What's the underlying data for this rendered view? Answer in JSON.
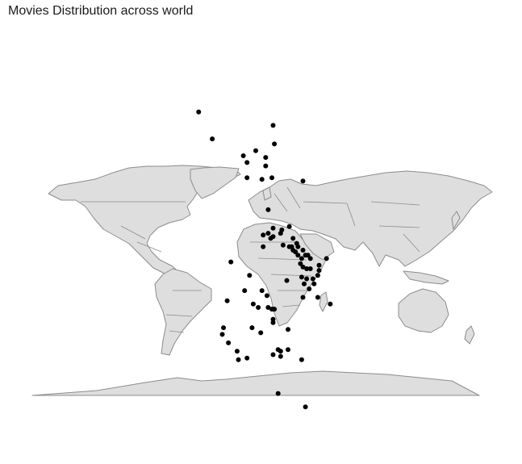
{
  "title": "Movies Distribution across world",
  "colors": {
    "land": "#dedede",
    "border": "#8c8c8c",
    "point": "#000000",
    "background": "#ffffff"
  },
  "chart_data": {
    "type": "scatter",
    "title": "Movies Distribution across world",
    "xlabel": "",
    "ylabel": "",
    "grid": false,
    "basemap": "world countries",
    "projection": "equirectangular",
    "lon_range": [
      -180,
      180
    ],
    "lat_range": [
      -90,
      90
    ],
    "points": [
      {
        "lon": -46,
        "lat": 82
      },
      {
        "lon": -35,
        "lat": 66
      },
      {
        "lon": -10,
        "lat": 56
      },
      {
        "lon": -7,
        "lat": 52
      },
      {
        "lon": -7,
        "lat": 43
      },
      {
        "lon": 0,
        "lat": 59
      },
      {
        "lon": 5,
        "lat": 42
      },
      {
        "lon": 8,
        "lat": 55
      },
      {
        "lon": 8,
        "lat": 50
      },
      {
        "lon": 14,
        "lat": 74
      },
      {
        "lon": 15,
        "lat": 63
      },
      {
        "lon": 13,
        "lat": 43
      },
      {
        "lon": 38,
        "lat": 41
      },
      {
        "lon": 10,
        "lat": 24
      },
      {
        "lon": 14,
        "lat": 13
      },
      {
        "lon": 10,
        "lat": 10
      },
      {
        "lon": 6,
        "lat": 9
      },
      {
        "lon": 6,
        "lat": 2
      },
      {
        "lon": 14,
        "lat": 8
      },
      {
        "lon": 20,
        "lat": 10
      },
      {
        "lon": 12,
        "lat": 7
      },
      {
        "lon": -20,
        "lat": -7
      },
      {
        "lon": -5,
        "lat": -15
      },
      {
        "lon": -9,
        "lat": -24
      },
      {
        "lon": -23,
        "lat": -30
      },
      {
        "lon": -2,
        "lat": -32
      },
      {
        "lon": 9,
        "lat": -27
      },
      {
        "lon": 14,
        "lat": -35
      },
      {
        "lon": 13,
        "lat": -35
      },
      {
        "lon": 15,
        "lat": -35
      },
      {
        "lon": 2,
        "lat": -34
      },
      {
        "lon": 5,
        "lat": -24
      },
      {
        "lon": 10,
        "lat": -34
      },
      {
        "lon": 14,
        "lat": -43
      },
      {
        "lon": 14,
        "lat": -41
      },
      {
        "lon": 25,
        "lat": -18
      },
      {
        "lon": 21,
        "lat": 12
      },
      {
        "lon": 22,
        "lat": 3
      },
      {
        "lon": 27,
        "lat": 14
      },
      {
        "lon": 27,
        "lat": 2
      },
      {
        "lon": 29,
        "lat": 2
      },
      {
        "lon": 30,
        "lat": 7
      },
      {
        "lon": 33,
        "lat": 4
      },
      {
        "lon": 34,
        "lat": 2
      },
      {
        "lon": 30,
        "lat": 0
      },
      {
        "lon": 32,
        "lat": -1
      },
      {
        "lon": 34,
        "lat": -3
      },
      {
        "lon": 38,
        "lat": 0
      },
      {
        "lon": 42,
        "lat": -3
      },
      {
        "lon": 44,
        "lat": -5
      },
      {
        "lon": 40,
        "lat": -3
      },
      {
        "lon": 37,
        "lat": -5
      },
      {
        "lon": 36,
        "lat": -8
      },
      {
        "lon": 38,
        "lat": -10
      },
      {
        "lon": 41,
        "lat": -11
      },
      {
        "lon": 44,
        "lat": -11
      },
      {
        "lon": 37,
        "lat": -16
      },
      {
        "lon": 41,
        "lat": -17
      },
      {
        "lon": 46,
        "lat": -17
      },
      {
        "lon": 39,
        "lat": -20
      },
      {
        "lon": 47,
        "lat": -20
      },
      {
        "lon": 43,
        "lat": -23
      },
      {
        "lon": 50,
        "lat": -28
      },
      {
        "lon": 38,
        "lat": -28
      },
      {
        "lon": 51,
        "lat": -9
      },
      {
        "lon": 50,
        "lat": -15
      },
      {
        "lon": 51,
        "lat": -12
      },
      {
        "lon": -26,
        "lat": -46
      },
      {
        "lon": -3,
        "lat": -46
      },
      {
        "lon": 4,
        "lat": -49
      },
      {
        "lon": 26,
        "lat": -47
      },
      {
        "lon": -27,
        "lat": -50
      },
      {
        "lon": -22,
        "lat": -55
      },
      {
        "lon": -15,
        "lat": -60
      },
      {
        "lon": -7,
        "lat": -64
      },
      {
        "lon": -14,
        "lat": -65
      },
      {
        "lon": 20,
        "lat": -63
      },
      {
        "lon": 18,
        "lat": -59
      },
      {
        "lon": 26,
        "lat": -59
      },
      {
        "lon": 14,
        "lat": -62
      },
      {
        "lon": 20,
        "lat": -60
      },
      {
        "lon": 37,
        "lat": -65
      },
      {
        "lon": 60,
        "lat": -32
      },
      {
        "lon": 57,
        "lat": -5
      },
      {
        "lon": 18,
        "lat": -85
      },
      {
        "lon": 40,
        "lat": -93
      }
    ]
  }
}
